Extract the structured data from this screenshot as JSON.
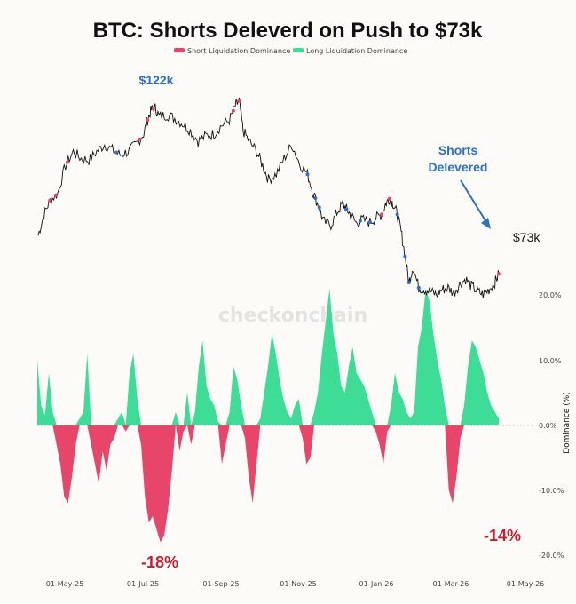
{
  "chart_data": {
    "type": "line+area",
    "title": "BTC: Shorts Deleverd on Push to $73k",
    "legend": [
      {
        "label": "Short Liquidation Dominance",
        "color": "#e8456a"
      },
      {
        "label": "Long Liquidation Dominance",
        "color": "#3ddc97"
      }
    ],
    "watermark": "checkonchain",
    "x_ticks": [
      "01-May-25",
      "01-Jul-25",
      "01-Sep-25",
      "01-Nov-25",
      "01-Jan-26",
      "01-Mar-26",
      "01-May-26"
    ],
    "y2_label": "Dominance (%)",
    "y2_ticks": [
      "20.0%",
      "10.0%",
      "0.0%",
      "-10.0%",
      "-20.0%"
    ],
    "y2_range": [
      -22,
      22
    ],
    "price_range": [
      70000,
      128000
    ],
    "price_series": [
      [
        0,
        84000
      ],
      [
        3,
        90000
      ],
      [
        6,
        94000
      ],
      [
        10,
        96000
      ],
      [
        14,
        104000
      ],
      [
        18,
        108000
      ],
      [
        22,
        106000
      ],
      [
        26,
        105500
      ],
      [
        30,
        108000
      ],
      [
        34,
        110000
      ],
      [
        38,
        108500
      ],
      [
        42,
        107000
      ],
      [
        46,
        108000
      ],
      [
        50,
        110000
      ],
      [
        54,
        113000
      ],
      [
        56,
        117000
      ],
      [
        58,
        120000
      ],
      [
        60,
        120500
      ],
      [
        62,
        118000
      ],
      [
        66,
        118500
      ],
      [
        70,
        117500
      ],
      [
        74,
        116000
      ],
      [
        78,
        114000
      ],
      [
        82,
        111000
      ],
      [
        86,
        112500
      ],
      [
        90,
        113000
      ],
      [
        94,
        115500
      ],
      [
        98,
        117000
      ],
      [
        101,
        121000
      ],
      [
        103,
        122500
      ],
      [
        105,
        114000
      ],
      [
        108,
        111000
      ],
      [
        112,
        108000
      ],
      [
        115,
        104000
      ],
      [
        118,
        100000
      ],
      [
        122,
        101500
      ],
      [
        126,
        106000
      ],
      [
        130,
        110000
      ],
      [
        134,
        104500
      ],
      [
        138,
        101500
      ],
      [
        141,
        96000
      ],
      [
        144,
        92000
      ],
      [
        146,
        88000
      ],
      [
        150,
        87000
      ],
      [
        153,
        90500
      ],
      [
        156,
        93000
      ],
      [
        158,
        91500
      ],
      [
        160,
        90000
      ],
      [
        163,
        87500
      ],
      [
        166,
        88500
      ],
      [
        170,
        87800
      ],
      [
        173,
        89000
      ],
      [
        176,
        90000
      ],
      [
        178,
        93000
      ],
      [
        180,
        94500
      ],
      [
        182,
        93000
      ],
      [
        184,
        90000
      ],
      [
        186,
        85000
      ],
      [
        188,
        78000
      ],
      [
        190,
        70500
      ],
      [
        192,
        75000
      ],
      [
        195,
        69000
      ],
      [
        198,
        68500
      ],
      [
        201,
        68000
      ],
      [
        204,
        67000
      ],
      [
        207,
        68500
      ],
      [
        210,
        69000
      ],
      [
        213,
        67500
      ],
      [
        216,
        70000
      ],
      [
        219,
        71500
      ],
      [
        222,
        69500
      ],
      [
        225,
        68000
      ],
      [
        228,
        67000
      ],
      [
        231,
        68500
      ],
      [
        234,
        70500
      ],
      [
        236,
        73000
      ]
    ],
    "dominance_series": [
      [
        0,
        10
      ],
      [
        1,
        3
      ],
      [
        2,
        1.5
      ],
      [
        3,
        8
      ],
      [
        4,
        2
      ],
      [
        5,
        -3
      ],
      [
        6,
        -6
      ],
      [
        7,
        -11
      ],
      [
        8,
        -12
      ],
      [
        9,
        -8
      ],
      [
        10,
        -3
      ],
      [
        11,
        1
      ],
      [
        12,
        2
      ],
      [
        13,
        11
      ],
      [
        14,
        -3
      ],
      [
        15,
        -6
      ],
      [
        16,
        -9
      ],
      [
        17,
        -4
      ],
      [
        18,
        -7
      ],
      [
        19,
        -3
      ],
      [
        20,
        -2
      ],
      [
        21,
        1
      ],
      [
        22,
        2
      ],
      [
        23,
        -1
      ],
      [
        24,
        8
      ],
      [
        25,
        11
      ],
      [
        26,
        4
      ],
      [
        27,
        -3
      ],
      [
        28,
        -11
      ],
      [
        29,
        -15
      ],
      [
        30,
        -14
      ],
      [
        31,
        -16
      ],
      [
        32,
        -18
      ],
      [
        33,
        -17
      ],
      [
        34,
        -13
      ],
      [
        35,
        -7
      ],
      [
        36,
        2
      ],
      [
        37,
        -4
      ],
      [
        38,
        -1
      ],
      [
        39,
        5
      ],
      [
        40,
        -3
      ],
      [
        41,
        2
      ],
      [
        42,
        9
      ],
      [
        43,
        13
      ],
      [
        44,
        6
      ],
      [
        45,
        4
      ],
      [
        46,
        3
      ],
      [
        47,
        0.5
      ],
      [
        48,
        -6
      ],
      [
        49,
        -3
      ],
      [
        50,
        2
      ],
      [
        51,
        9
      ],
      [
        52,
        7
      ],
      [
        53,
        3
      ],
      [
        54,
        -2
      ],
      [
        55,
        -8
      ],
      [
        56,
        -12
      ],
      [
        57,
        -6
      ],
      [
        58,
        1
      ],
      [
        59,
        5
      ],
      [
        60,
        9
      ],
      [
        61,
        14
      ],
      [
        62,
        11
      ],
      [
        63,
        7
      ],
      [
        64,
        4
      ],
      [
        65,
        2
      ],
      [
        66,
        1
      ],
      [
        67,
        3
      ],
      [
        68,
        4
      ],
      [
        69,
        -2
      ],
      [
        70,
        -6
      ],
      [
        71,
        -5
      ],
      [
        72,
        2
      ],
      [
        73,
        5
      ],
      [
        74,
        11
      ],
      [
        75,
        16
      ],
      [
        76,
        21
      ],
      [
        77,
        14
      ],
      [
        78,
        11
      ],
      [
        79,
        6
      ],
      [
        80,
        5
      ],
      [
        81,
        9
      ],
      [
        82,
        12
      ],
      [
        83,
        8
      ],
      [
        84,
        7
      ],
      [
        85,
        6
      ],
      [
        86,
        4
      ],
      [
        87,
        2
      ],
      [
        88,
        -1
      ],
      [
        89,
        -3
      ],
      [
        90,
        -6
      ],
      [
        91,
        -1
      ],
      [
        92,
        3
      ],
      [
        93,
        8
      ],
      [
        94,
        5
      ],
      [
        95,
        4
      ],
      [
        96,
        2
      ],
      [
        97,
        1
      ],
      [
        98,
        2
      ],
      [
        99,
        12
      ],
      [
        100,
        15
      ],
      [
        101,
        21
      ],
      [
        102,
        19
      ],
      [
        103,
        14
      ],
      [
        104,
        10
      ],
      [
        105,
        7
      ],
      [
        106,
        3
      ],
      [
        107,
        -10
      ],
      [
        108,
        -12
      ],
      [
        109,
        -8
      ],
      [
        110,
        -2
      ],
      [
        111,
        3
      ],
      [
        112,
        9
      ],
      [
        113,
        13
      ],
      [
        114,
        12
      ],
      [
        115,
        10
      ],
      [
        116,
        8
      ],
      [
        117,
        5
      ],
      [
        118,
        3
      ],
      [
        119,
        2
      ],
      [
        120,
        1
      ]
    ],
    "annotations": [
      {
        "text": "$122k",
        "color": "blue"
      },
      {
        "text": "Shorts",
        "color": "blue"
      },
      {
        "text": "Delevered",
        "color": "blue"
      },
      {
        "text": "$73k",
        "color": "black"
      },
      {
        "text": "-18%",
        "color": "red"
      },
      {
        "text": "-14%",
        "color": "red"
      }
    ]
  }
}
